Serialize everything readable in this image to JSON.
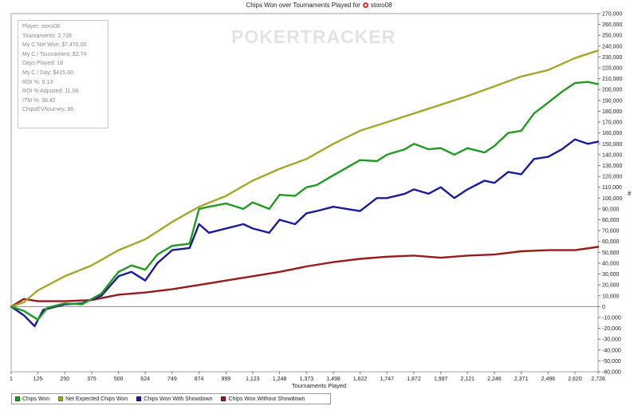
{
  "title": {
    "prefix": "Chips Won over Tournaments Played for",
    "player": "storo08",
    "logo_icon": "pokerstars-logo-icon"
  },
  "watermark": "POKERTRACKER",
  "stats": [
    "Player: storo08",
    "Tournaments: 2,728",
    "My C Net Won: $7,470.00",
    "My C / Tournament: $2.74",
    "Days Played: 18",
    "My C / Day: $415.00",
    "ROI %: 9.13",
    "ROI % Adjusted: 11.08",
    "ITM %: 38.42",
    "ChipsEV/tourney: 86"
  ],
  "chart_data": {
    "type": "line",
    "title": "Chips Won over Tournaments Played for storo08",
    "xlabel": "Tournaments Played",
    "ylabel": "#",
    "xlim": [
      1,
      2728
    ],
    "ylim": [
      -60000,
      270000
    ],
    "x_ticks": [
      "1",
      "125",
      "250",
      "375",
      "500",
      "624",
      "749",
      "874",
      "999",
      "1,123",
      "1,248",
      "1,373",
      "1,498",
      "1,622",
      "1,747",
      "1,872",
      "1,997",
      "2,121",
      "2,246",
      "2,371",
      "2,496",
      "2,620",
      "2,728"
    ],
    "y_ticks": [
      "270,000",
      "260,000",
      "250,000",
      "240,000",
      "230,000",
      "220,000",
      "210,000",
      "200,000",
      "190,000",
      "180,000",
      "170,000",
      "160,000",
      "150,000",
      "140,000",
      "130,000",
      "120,000",
      "110,000",
      "100,000",
      "90,000",
      "80,000",
      "70,000",
      "60,000",
      "50,000",
      "40,000",
      "30,000",
      "20,000",
      "10,000",
      "0",
      "-10,000",
      "-20,000",
      "-30,000",
      "-40,000",
      "-50,000",
      "-60,000"
    ],
    "grid": false,
    "legend_position": "bottom-left",
    "series": [
      {
        "name": "Chips Won",
        "color": "#1f9b1f",
        "x": [
          1,
          60,
          125,
          170,
          250,
          330,
          420,
          500,
          560,
          624,
          680,
          749,
          830,
          874,
          920,
          999,
          1080,
          1123,
          1200,
          1248,
          1320,
          1373,
          1420,
          1498,
          1560,
          1622,
          1700,
          1747,
          1830,
          1872,
          1940,
          1997,
          2060,
          2121,
          2200,
          2246,
          2310,
          2371,
          2430,
          2496,
          2560,
          2620,
          2680,
          2728
        ],
        "y": [
          0,
          -4000,
          -12000,
          -1000,
          3000,
          2000,
          12000,
          32000,
          38000,
          34000,
          48000,
          56000,
          58000,
          90000,
          92000,
          95000,
          90000,
          96000,
          90000,
          103000,
          102000,
          110000,
          112000,
          121000,
          128000,
          135000,
          134000,
          140000,
          145000,
          150000,
          145000,
          146000,
          140000,
          146000,
          142000,
          148000,
          160000,
          162000,
          178000,
          188000,
          198000,
          206000,
          207000,
          205000
        ]
      },
      {
        "name": "Net Expected Chips Won",
        "color": "#a6a629",
        "x": [
          1,
          60,
          125,
          250,
          375,
          500,
          624,
          749,
          874,
          999,
          1123,
          1248,
          1373,
          1498,
          1622,
          1747,
          1872,
          1997,
          2121,
          2246,
          2371,
          2496,
          2620,
          2728
        ],
        "y": [
          0,
          4000,
          15000,
          28000,
          38000,
          52000,
          62000,
          78000,
          92000,
          102000,
          116000,
          127000,
          136000,
          150000,
          162000,
          170000,
          178000,
          186000,
          194000,
          203000,
          212000,
          218000,
          229000,
          236000
        ]
      },
      {
        "name": "Chips Won With Showdown",
        "color": "#1a1aa0",
        "x": [
          1,
          60,
          110,
          150,
          250,
          330,
          420,
          500,
          560,
          624,
          680,
          749,
          830,
          874,
          920,
          999,
          1080,
          1123,
          1200,
          1248,
          1320,
          1373,
          1420,
          1498,
          1560,
          1622,
          1700,
          1747,
          1830,
          1872,
          1940,
          1997,
          2060,
          2121,
          2200,
          2246,
          2310,
          2371,
          2430,
          2496,
          2560,
          2620,
          2680,
          2728
        ],
        "y": [
          0,
          -8000,
          -18000,
          -3000,
          2000,
          3000,
          10000,
          28000,
          32000,
          24000,
          40000,
          52000,
          54000,
          76000,
          68000,
          72000,
          76000,
          72000,
          68000,
          80000,
          76000,
          86000,
          88000,
          92000,
          90000,
          88000,
          100000,
          100000,
          104000,
          108000,
          104000,
          110000,
          100000,
          108000,
          116000,
          114000,
          124000,
          122000,
          136000,
          138000,
          145000,
          154000,
          150000,
          152000
        ]
      },
      {
        "name": "Chips Won Without Showdown",
        "color": "#9a1a1a",
        "x": [
          1,
          60,
          125,
          250,
          375,
          500,
          624,
          749,
          874,
          999,
          1123,
          1248,
          1373,
          1498,
          1622,
          1747,
          1872,
          1997,
          2121,
          2246,
          2371,
          2496,
          2620,
          2728
        ],
        "y": [
          0,
          7000,
          5000,
          5000,
          6000,
          11000,
          13000,
          16000,
          20000,
          24000,
          28000,
          32000,
          37000,
          41000,
          44000,
          46000,
          47000,
          45000,
          47000,
          48000,
          51000,
          52000,
          52000,
          55000
        ]
      }
    ]
  }
}
